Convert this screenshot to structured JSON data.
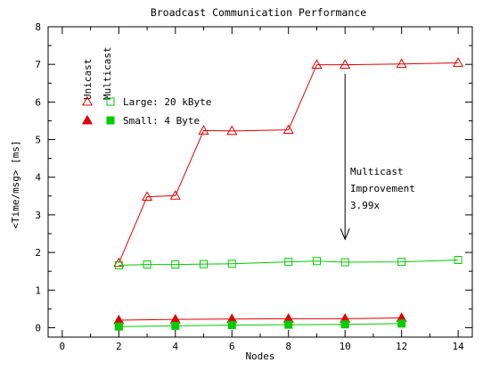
{
  "chart_data": {
    "type": "line",
    "title": "Broadcast Communication Performance",
    "xlabel": "Nodes",
    "ylabel": "<Time/msg> [ms]",
    "xlim": [
      -0.5,
      14.5
    ],
    "ylim": [
      -0.25,
      8
    ],
    "xticks": [
      "0",
      "2",
      "4",
      "6",
      "8",
      "10",
      "12",
      "14"
    ],
    "yticks": [
      "0",
      "1",
      "2",
      "3",
      "4",
      "5",
      "6",
      "7",
      "8"
    ],
    "grid": false,
    "legend": {
      "position": "top-left",
      "column_headers": [
        "Unicast",
        "Multicast"
      ],
      "rows": [
        "Large: 20 kByte",
        "Small: 4 Byte"
      ]
    },
    "series": [
      {
        "name": "Unicast Large: 20 kByte",
        "color": "#e00000",
        "marker": "triangle-open",
        "x": [
          2,
          3,
          4,
          5,
          6,
          8,
          9,
          10,
          12,
          14
        ],
        "y": [
          1.72,
          3.48,
          3.51,
          5.24,
          5.23,
          5.26,
          6.99,
          6.99,
          7.01,
          7.04
        ]
      },
      {
        "name": "Multicast Large: 20 kByte",
        "color": "#00cc00",
        "marker": "square-open",
        "x": [
          2,
          3,
          4,
          5,
          6,
          8,
          9,
          10,
          12,
          14
        ],
        "y": [
          1.66,
          1.68,
          1.68,
          1.69,
          1.7,
          1.75,
          1.77,
          1.74,
          1.75,
          1.8
        ]
      },
      {
        "name": "Unicast Small: 4 Byte",
        "color": "#e00000",
        "marker": "triangle-filled",
        "x": [
          2,
          4,
          6,
          8,
          10,
          12
        ],
        "y": [
          0.2,
          0.22,
          0.23,
          0.24,
          0.24,
          0.26
        ]
      },
      {
        "name": "Multicast Small: 4 Byte",
        "color": "#00cc00",
        "marker": "square-filled",
        "x": [
          2,
          4,
          6,
          8,
          10,
          12
        ],
        "y": [
          0.03,
          0.05,
          0.07,
          0.08,
          0.09,
          0.11
        ]
      }
    ],
    "annotation": {
      "lines": [
        "Multicast",
        "Improvement",
        "3.99x"
      ],
      "arrow_x": 10,
      "arrow_from_y": 6.75,
      "arrow_to_y": 2.35
    }
  }
}
